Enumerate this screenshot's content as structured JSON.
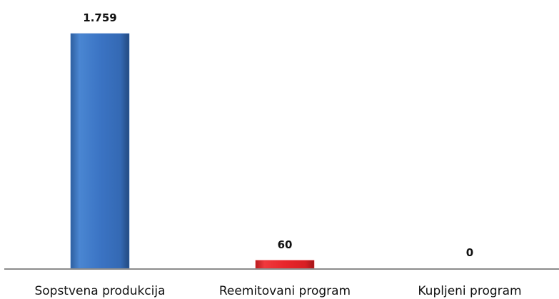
{
  "chart_data": {
    "type": "bar",
    "categories": [
      "Sopstvena produkcija",
      "Reemitovani program",
      "Kupljeni program"
    ],
    "values": [
      1759,
      60,
      0
    ],
    "value_labels": [
      "1.759",
      "60",
      "0"
    ],
    "colors": [
      "#3b74c4",
      "#e8262b",
      "#3b74c4"
    ],
    "title": "",
    "xlabel": "",
    "ylabel": "",
    "ylim": [
      0,
      1759
    ],
    "grid": false,
    "legend": "none"
  }
}
